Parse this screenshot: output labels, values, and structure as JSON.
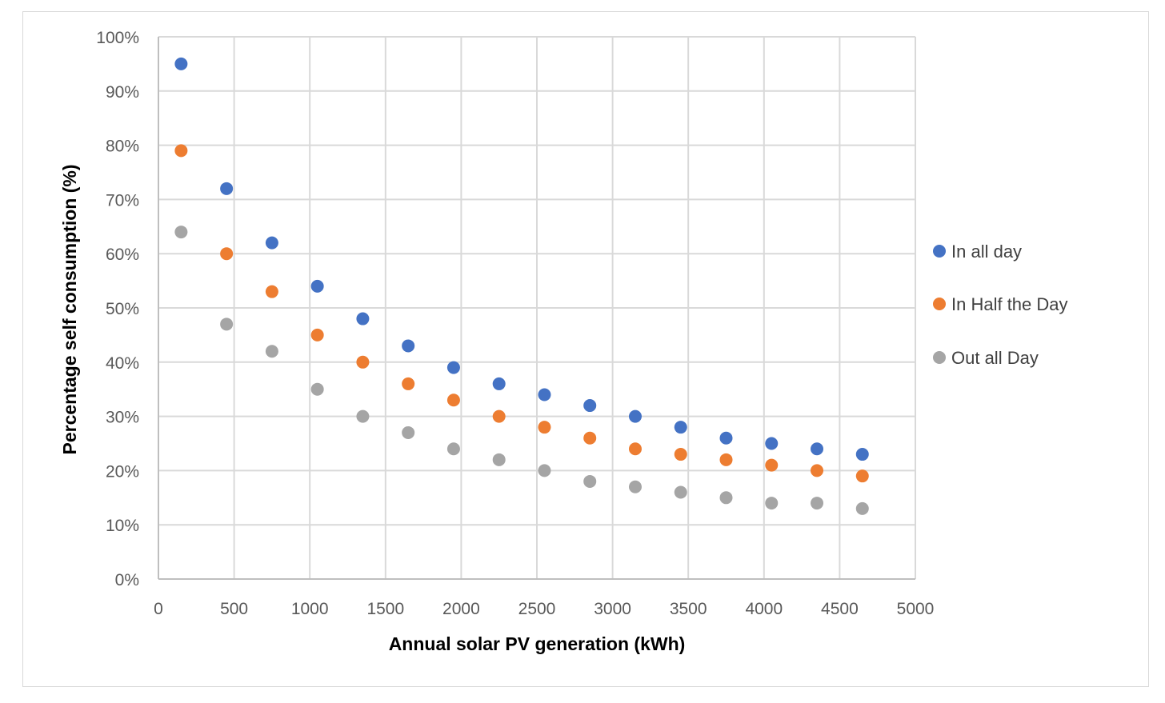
{
  "chart_data": {
    "type": "scatter",
    "title": "",
    "xlabel": "Annual solar PV generation (kWh)",
    "ylabel": "Percentage self consumption (%)",
    "xlim": [
      0,
      5000
    ],
    "ylim": [
      0,
      100
    ],
    "x_ticks": [
      0,
      500,
      1000,
      1500,
      2000,
      2500,
      3000,
      3500,
      4000,
      4500,
      5000
    ],
    "y_ticks": [
      0,
      10,
      20,
      30,
      40,
      50,
      60,
      70,
      80,
      90,
      100
    ],
    "x_tick_labels": [
      "0",
      "500",
      "1000",
      "1500",
      "2000",
      "2500",
      "3000",
      "3500",
      "4000",
      "4500",
      "5000"
    ],
    "y_tick_labels": [
      "0%",
      "10%",
      "20%",
      "30%",
      "40%",
      "50%",
      "60%",
      "70%",
      "80%",
      "90%",
      "100%"
    ],
    "grid": true,
    "legend_position": "right",
    "x": [
      150,
      450,
      750,
      1050,
      1350,
      1650,
      1950,
      2250,
      2550,
      2850,
      3150,
      3450,
      3750,
      4050,
      4350,
      4650
    ],
    "series": [
      {
        "name": "In all day",
        "color": "#4472C4",
        "values": [
          95,
          72,
          62,
          54,
          48,
          43,
          39,
          36,
          34,
          32,
          30,
          28,
          26,
          25,
          24,
          23
        ]
      },
      {
        "name": "In Half the Day",
        "color": "#ED7D31",
        "values": [
          79,
          60,
          53,
          45,
          40,
          36,
          33,
          30,
          28,
          26,
          24,
          23,
          22,
          21,
          20,
          19
        ]
      },
      {
        "name": "Out all Day",
        "color": "#A5A5A5",
        "values": [
          64,
          47,
          42,
          35,
          30,
          27,
          24,
          22,
          20,
          18,
          17,
          16,
          15,
          14,
          14,
          13
        ]
      }
    ]
  }
}
